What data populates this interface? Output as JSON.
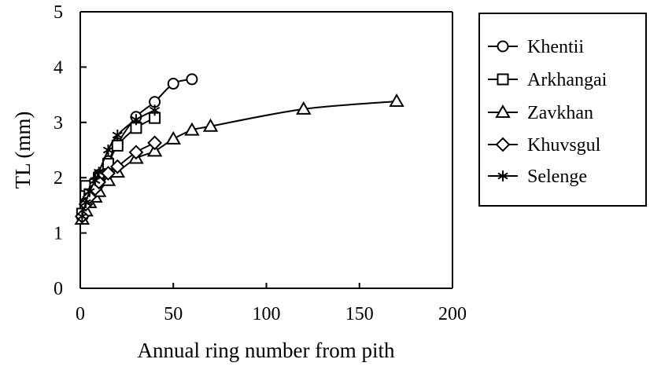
{
  "chart_data": {
    "type": "line",
    "title": "",
    "xlabel": "Annual ring number from pith",
    "ylabel": "TL (mm)",
    "xlim": [
      0,
      200
    ],
    "ylim": [
      0,
      5
    ],
    "xticks": [
      0,
      50,
      100,
      150,
      200
    ],
    "yticks": [
      0,
      1,
      2,
      3,
      4,
      5
    ],
    "grid": false,
    "legend_position": "right",
    "series": [
      {
        "name": "Khentii",
        "marker": "circle",
        "x": [
          1,
          3,
          5,
          8,
          10,
          15,
          20,
          30,
          40,
          50,
          60
        ],
        "y": [
          1.32,
          1.55,
          1.72,
          1.92,
          2.05,
          2.3,
          2.62,
          3.1,
          3.37,
          3.7,
          3.78
        ]
      },
      {
        "name": "Arkhangai",
        "marker": "square",
        "x": [
          1,
          3,
          5,
          8,
          10,
          15,
          20,
          30,
          40
        ],
        "y": [
          1.35,
          1.85,
          1.7,
          1.88,
          2.0,
          2.25,
          2.58,
          2.9,
          3.08
        ]
      },
      {
        "name": "Zavkhan",
        "marker": "triangle",
        "x": [
          1,
          3,
          5,
          8,
          10,
          15,
          20,
          30,
          40,
          50,
          60,
          70,
          120,
          170
        ],
        "y": [
          1.25,
          1.4,
          1.55,
          1.65,
          1.75,
          1.95,
          2.1,
          2.35,
          2.48,
          2.7,
          2.86,
          2.93,
          3.24,
          3.38
        ]
      },
      {
        "name": "Khuvsgul",
        "marker": "diamond",
        "x": [
          1,
          3,
          5,
          8,
          10,
          15,
          20,
          30,
          40
        ],
        "y": [
          1.3,
          1.52,
          1.65,
          1.8,
          1.92,
          2.08,
          2.2,
          2.46,
          2.63
        ]
      },
      {
        "name": "Selenge",
        "marker": "asterisk",
        "x": [
          1,
          3,
          5,
          8,
          10,
          15,
          20,
          30,
          40
        ],
        "y": [
          1.3,
          1.55,
          1.75,
          1.95,
          2.1,
          2.5,
          2.77,
          3.05,
          3.22
        ]
      }
    ]
  },
  "axes": {
    "xlabel": "Annual ring number from pith",
    "ylabel": "TL (mm)",
    "xtick_labels": [
      "0",
      "50",
      "100",
      "150",
      "200"
    ],
    "ytick_labels": [
      "0",
      "1",
      "2",
      "3",
      "4",
      "5"
    ]
  },
  "legend": {
    "items": [
      {
        "label": "Khentii",
        "marker": "circle"
      },
      {
        "label": "Arkhangai",
        "marker": "square"
      },
      {
        "label": "Zavkhan",
        "marker": "triangle"
      },
      {
        "label": "Khuvsgul",
        "marker": "diamond"
      },
      {
        "label": "Selenge",
        "marker": "asterisk"
      }
    ]
  },
  "colors": {
    "line": "#000000",
    "background": "#ffffff"
  }
}
